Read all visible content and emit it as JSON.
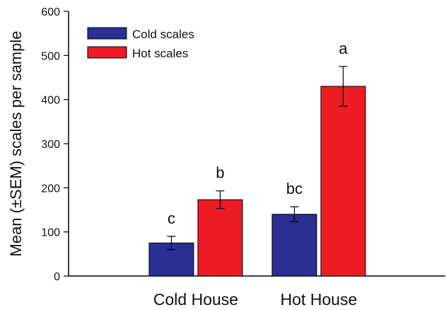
{
  "chart_data": {
    "type": "bar",
    "title": "",
    "xlabel": "",
    "ylabel": "Mean (±SEM) scales per sample",
    "ylim": [
      0,
      600
    ],
    "yticks": [
      0,
      100,
      200,
      300,
      400,
      500,
      600
    ],
    "categories": [
      "Cold House",
      "Hot House"
    ],
    "legend_position": "top-left",
    "grid": false,
    "series": [
      {
        "name": "Cold scales",
        "color": "#2b2f94",
        "values": [
          75,
          140
        ],
        "sem": [
          15,
          17
        ],
        "labels": [
          "c",
          "bc"
        ]
      },
      {
        "name": "Hot scales",
        "color": "#ed1c24",
        "values": [
          173,
          430
        ],
        "sem": [
          20,
          45
        ],
        "labels": [
          "b",
          "a"
        ]
      }
    ]
  }
}
